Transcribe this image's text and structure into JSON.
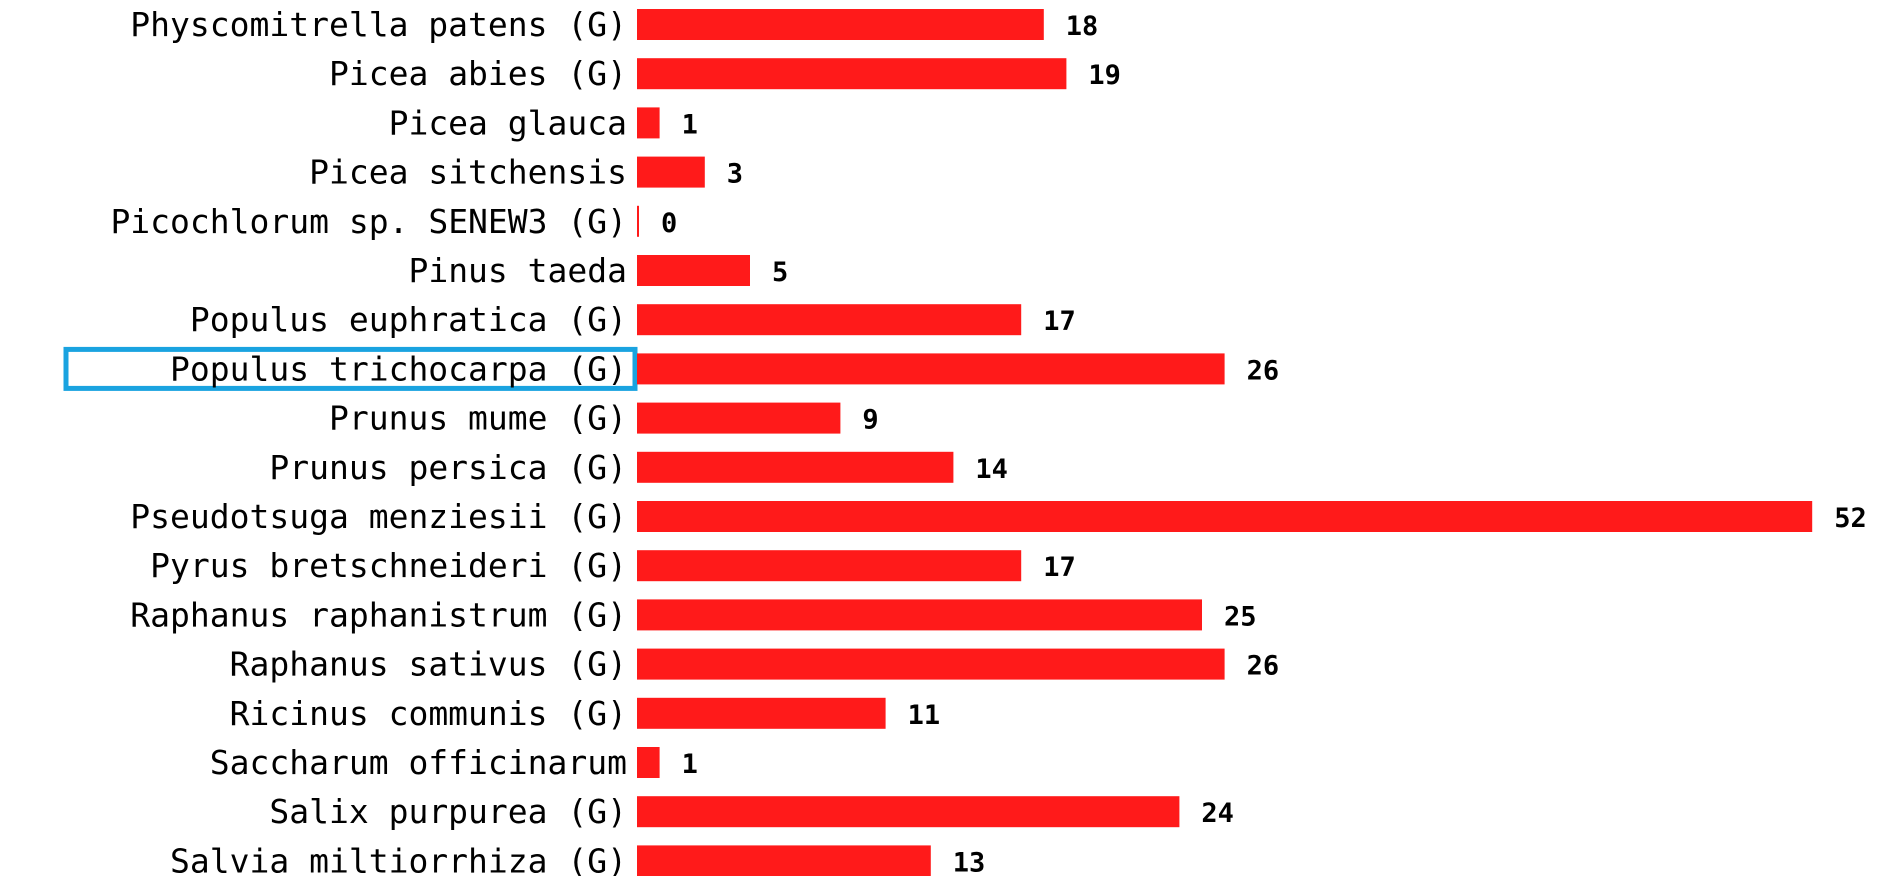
{
  "chart_data": {
    "type": "bar",
    "orientation": "horizontal",
    "categories": [
      "Physcomitrella patens (G)",
      "Picea abies (G)",
      "Picea glauca",
      "Picea sitchensis",
      "Picochlorum sp. SENEW3 (G)",
      "Pinus taeda",
      "Populus euphratica (G)",
      "Populus trichocarpa (G)",
      "Prunus mume (G)",
      "Prunus persica (G)",
      "Pseudotsuga menziesii (G)",
      "Pyrus bretschneideri (G)",
      "Raphanus raphanistrum (G)",
      "Raphanus sativus (G)",
      "Ricinus communis (G)",
      "Saccharum officinarum",
      "Salix purpurea (G)",
      "Salvia miltiorrhiza (G)"
    ],
    "values": [
      18,
      19,
      1,
      3,
      0,
      5,
      17,
      26,
      9,
      14,
      52,
      17,
      25,
      26,
      11,
      1,
      24,
      13
    ],
    "highlighted_category": "Populus trichocarpa (G)",
    "xlim": [
      0,
      52
    ],
    "grid": false,
    "legend": "none",
    "colors": {
      "bar": "#ff1a1a",
      "highlight_box": "#1aa3e0",
      "text": "#000000"
    }
  }
}
